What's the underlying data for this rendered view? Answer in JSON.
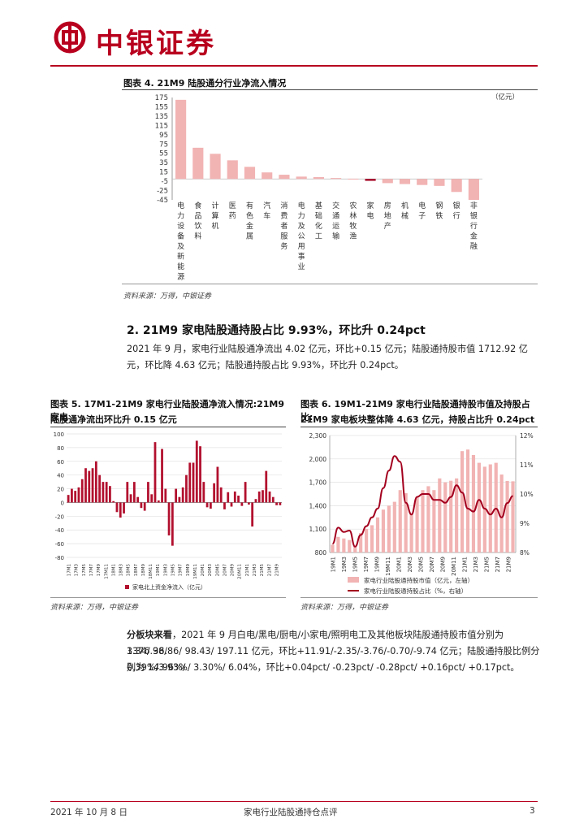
{
  "header": {
    "brand": "中银证券"
  },
  "fig4": {
    "title": "图表 4. 21M9 陆股通分行业净流入情况",
    "source": "资料来源：万得，中银证券",
    "chart_data": {
      "type": "bar",
      "title": "图表 4. 21M9 陆股通分行业净流入情况",
      "unit": "（亿元）",
      "yticks": [
        175,
        155,
        135,
        115,
        95,
        75,
        55,
        35,
        15,
        -5,
        -25,
        -45
      ],
      "ylim": [
        -45,
        175
      ],
      "categories": [
        "电力设备及新能源",
        "食品饮料",
        "计算机",
        "医药",
        "有色金属",
        "汽车",
        "消费者服务",
        "电力及公用事业",
        "基础化工",
        "交通运输",
        "农林牧渔",
        "家电",
        "房地产",
        "机械",
        "电子",
        "钢铁",
        "银行",
        "非银行金融"
      ],
      "values": [
        170,
        67,
        54,
        40,
        26,
        14,
        9,
        5,
        4,
        2,
        0.5,
        -4.02,
        -9,
        -11,
        -13,
        -15,
        -28,
        -45
      ],
      "highlight_index": 11,
      "colors": {
        "bar": "#f2b3b3",
        "highlight": "#a3001e"
      }
    }
  },
  "section": {
    "title": "2. 21M9 家电陆股通持股占比 9.93%，环比升 0.24pct",
    "para": "2021 年 9 月，家电行业陆股通净流出 4.02 亿元，环比+0.15 亿元；陆股通持股市值 1712.92 亿元，环比降 4.63 亿元；陆股通持股占比 9.93%，环比升 0.24pct。"
  },
  "fig5": {
    "title_line1": "图表 5. 17M1-21M9 家电行业陆股通净流入情况:21M9 家电",
    "title_line2": "陆股通净流出环比升 0.15 亿元",
    "source": "资料来源：万得，中银证券",
    "chart_data": {
      "type": "bar",
      "yticks": [
        100,
        80,
        60,
        40,
        20,
        0,
        -20,
        -40,
        -60,
        -80
      ],
      "ylim": [
        -80,
        100
      ],
      "xtick_labels": [
        "17M1",
        "17M3",
        "17M5",
        "17M7",
        "17M9",
        "17M11",
        "18M1",
        "18M3",
        "18M5",
        "18M7",
        "18M9",
        "18M11",
        "19M1",
        "19M3",
        "19M5",
        "19M7",
        "19M9",
        "19M11",
        "20M1",
        "20M3",
        "20M5",
        "20M7",
        "20M9",
        "20M11",
        "21M1",
        "21M3",
        "21M5",
        "21M7",
        "21M9"
      ],
      "series": [
        {
          "name": "家电北上资金净流入（亿元）",
          "values": [
            11,
            20,
            17,
            22,
            34,
            50,
            46,
            50,
            60,
            40,
            30,
            30,
            24,
            2,
            -14,
            -22,
            -16,
            30,
            12,
            30,
            8,
            -8,
            -12,
            30,
            12,
            88,
            3,
            78,
            20,
            -48,
            -63,
            20,
            8,
            22,
            40,
            58,
            58,
            90,
            82,
            30,
            -7,
            -9,
            28,
            52,
            22,
            -10,
            15,
            -6,
            16,
            10,
            -5,
            30,
            -3,
            -35,
            5,
            16,
            18,
            46,
            16,
            8,
            -4,
            -4
          ]
        }
      ],
      "colors": {
        "bar": "#b2102e"
      }
    }
  },
  "fig6": {
    "title_line1": "图表 6. 19M1-21M9 家电行业陆股通持股市值及持股占比:",
    "title_line2": "21M9 家电板块整体降 4.63 亿元，持股占比升 0.24pct",
    "source": "资料来源：万得，中银证券",
    "chart_data": {
      "type": "bar",
      "yticks_left": [
        2300,
        2000,
        1700,
        1400,
        1100,
        800
      ],
      "ylim_left": [
        800,
        2300
      ],
      "yticks_right": [
        "12%",
        "11%",
        "10%",
        "9%",
        "8%"
      ],
      "ylim_right": [
        8,
        12
      ],
      "xtick_labels": [
        "19M1",
        "19M3",
        "19M5",
        "19M7",
        "19M9",
        "19M11",
        "20M1",
        "20M3",
        "20M5",
        "20M7",
        "20M9",
        "20M11",
        "21M1",
        "21M3",
        "21M5",
        "21M7",
        "21M9"
      ],
      "series": [
        {
          "name": "家电行业陆股通持股市值（亿元，左轴）",
          "type": "bar",
          "values": [
            900,
            1000,
            980,
            960,
            880,
            1050,
            1100,
            1150,
            1250,
            1350,
            1400,
            1450,
            1600,
            1560,
            1300,
            1500,
            1600,
            1650,
            1600,
            1750,
            1700,
            1720,
            1750,
            2100,
            2120,
            2050,
            1950,
            1900,
            1930,
            1950,
            1800,
            1717.55,
            1712.92
          ]
        },
        {
          "name": "家电行业陆股通持股占比（%，右轴）",
          "type": "line",
          "values": [
            8.3,
            8.85,
            8.7,
            8.75,
            8.2,
            8.6,
            8.9,
            9.2,
            9.5,
            10.2,
            10.8,
            11.3,
            11.1,
            9.7,
            9.3,
            9.9,
            10.0,
            10.0,
            9.8,
            9.8,
            9.7,
            9.9,
            10.3,
            10.05,
            9.5,
            9.4,
            9.8,
            9.5,
            9.3,
            9.5,
            9.2,
            9.69,
            9.93
          ]
        }
      ],
      "colors": {
        "bar": "#f2b3b3",
        "line": "#a3001e"
      }
    }
  },
  "para2": {
    "lead": "分板块来看",
    "line1": "，2021 年 9 月白电/黑电/厨电/小家电/照明电工及其他板块陆股通持股市值分别为 1376.98/",
    "line2": "3.34/ 36.86/ 98.43/ 197.11 亿元，环比+11.91/-2.35/-3.76/-0.70/-9.74 亿元；陆股通持股比例分别为 14.96%/",
    "line3": "0.39%/3.93%/ 3.30%/ 6.04%，环比+0.04pct/ -0.23pct/ -0.28pct/ +0.16pct/ +0.17pct。"
  },
  "footer": {
    "date": "2021 年 10 月 8 日",
    "title": "家电行业陆股通持仓点评",
    "page": "3"
  }
}
